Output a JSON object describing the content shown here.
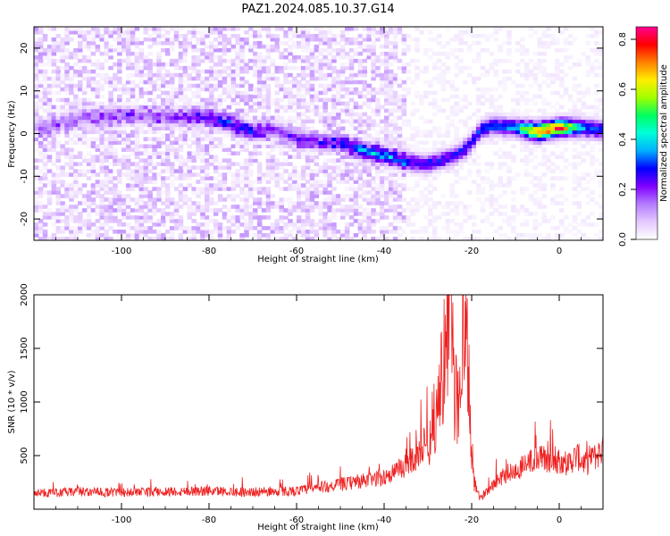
{
  "title": "PAZ1.2024.085.10.37.G14",
  "chart_data": [
    {
      "type": "heatmap",
      "xlabel": "Height of straight line (km)",
      "ylabel": "Frequency (Hz)",
      "xlim": [
        -120,
        10
      ],
      "ylim": [
        -25,
        25
      ],
      "x_ticks": [
        -100,
        -80,
        -60,
        -40,
        -20,
        0
      ],
      "y_ticks": [
        -20,
        -10,
        0,
        10,
        20
      ],
      "colorbar": {
        "label": "Normalized spectral amplitude",
        "range": [
          0.0,
          0.85
        ],
        "ticks": [
          0.0,
          0.2,
          0.4,
          0.6,
          0.8
        ],
        "colors": [
          "#ffffff",
          "#e4c8ff",
          "#b47cff",
          "#8000ff",
          "#0000ff",
          "#00b0ff",
          "#00ffd8",
          "#00ff60",
          "#a0ff00",
          "#ffee00",
          "#ff8000",
          "#ff0000",
          "#ff0090"
        ]
      },
      "ridge": {
        "x": [
          -117,
          -110,
          -100,
          -90,
          -80,
          -70,
          -65,
          -60,
          -55,
          -50,
          -45,
          -40,
          -35,
          -30,
          -25,
          -22,
          -20,
          -18,
          -15,
          -10,
          -5,
          0,
          5,
          10
        ],
        "freq": [
          1.5,
          4,
          4.5,
          4,
          4,
          0.5,
          1,
          -1,
          -2,
          -2,
          -4,
          -5,
          -6.5,
          -7,
          -5.5,
          -4,
          -2,
          1,
          2,
          1.5,
          0.5,
          1.5,
          1.5,
          1
        ],
        "peak_amplitude": [
          0.12,
          0.14,
          0.15,
          0.16,
          0.24,
          0.26,
          0.18,
          0.22,
          0.18,
          0.26,
          0.34,
          0.36,
          0.3,
          0.3,
          0.3,
          0.3,
          0.3,
          0.3,
          0.34,
          0.4,
          0.84,
          0.86,
          0.4,
          0.34
        ]
      }
    },
    {
      "type": "line",
      "xlabel": "Height of straight line (km)",
      "ylabel": "SNR (10 * v/v)",
      "xlim": [
        -120,
        10
      ],
      "ylim": [
        0,
        2000
      ],
      "x_ticks": [
        -100,
        -80,
        -60,
        -40,
        -20,
        0
      ],
      "y_ticks": [
        500,
        1000,
        1500,
        2000
      ],
      "color": "#ee2020",
      "series": [
        {
          "x": [
            -120,
            -110,
            -100,
            -90,
            -80,
            -70,
            -60,
            -55,
            -50,
            -45,
            -40,
            -36,
            -33,
            -30,
            -28,
            -27,
            -26,
            -25.5,
            -25,
            -24.5,
            -24,
            -23,
            -22,
            -21,
            -20,
            -19.5,
            -19,
            -18,
            -16,
            -14,
            -12,
            -10,
            -8,
            -6,
            -4,
            -2,
            0,
            2,
            4,
            6,
            8,
            10
          ],
          "y": [
            150,
            160,
            155,
            165,
            170,
            160,
            170,
            200,
            230,
            260,
            300,
            380,
            480,
            650,
            900,
            1200,
            1550,
            1350,
            2050,
            1600,
            1100,
            1000,
            1500,
            1400,
            600,
            250,
            180,
            100,
            200,
            280,
            330,
            350,
            420,
            450,
            480,
            440,
            460,
            420,
            500,
            420,
            480,
            560
          ]
        }
      ]
    }
  ]
}
